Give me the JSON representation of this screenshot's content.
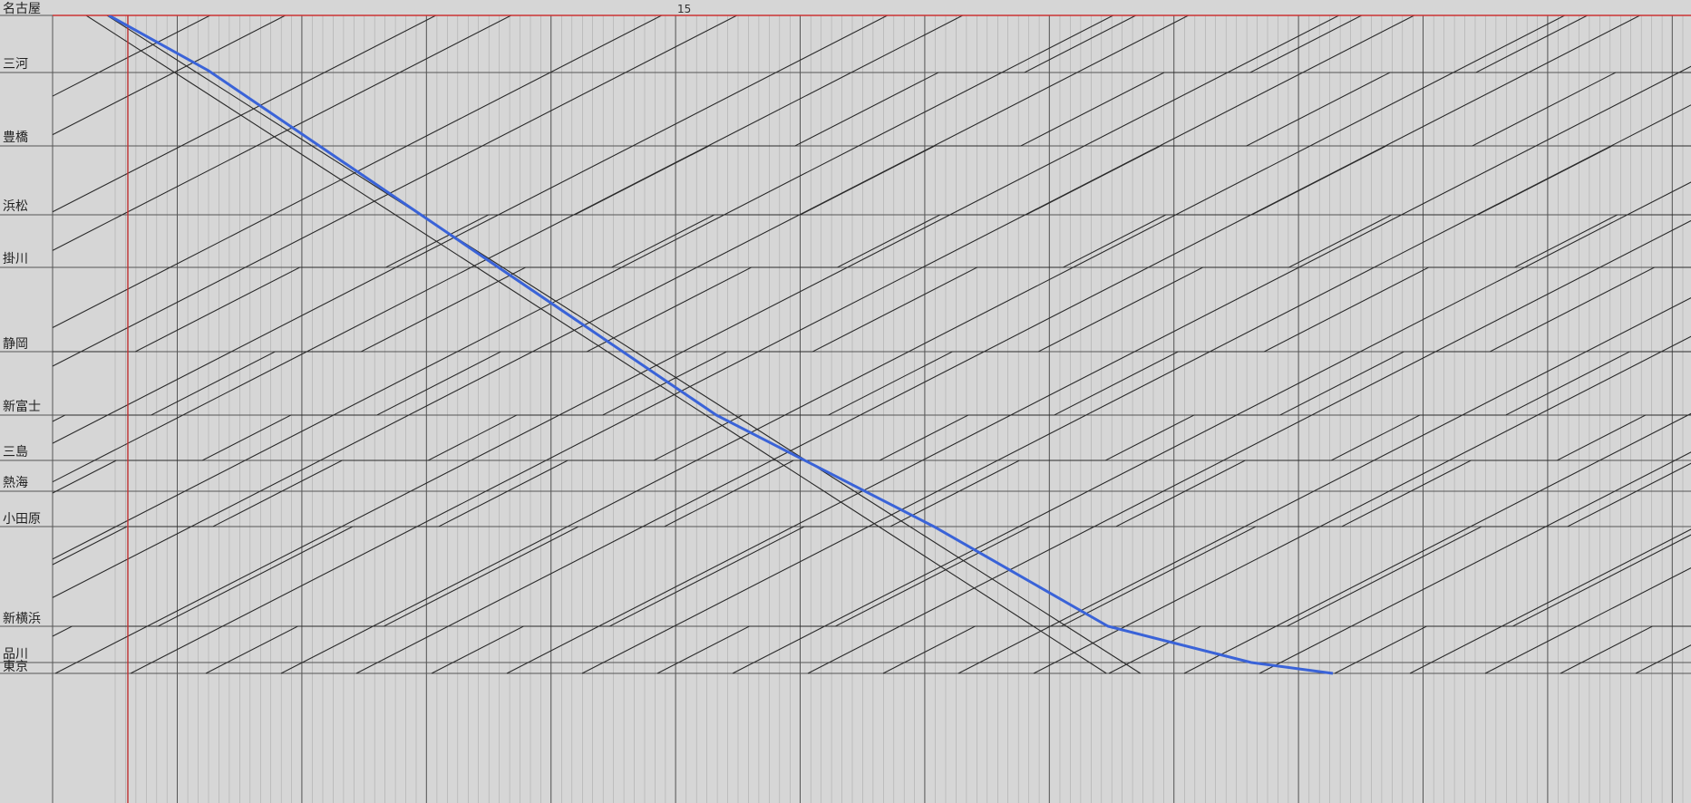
{
  "diagram": {
    "stations": [
      {
        "name": "名古屋"
      },
      {
        "name": "三河"
      },
      {
        "name": "豊橋"
      },
      {
        "name": "浜松"
      },
      {
        "name": "掛川"
      },
      {
        "name": "静岡"
      },
      {
        "name": "新富士"
      },
      {
        "name": "三島"
      },
      {
        "name": "熱海"
      },
      {
        "name": "小田原"
      },
      {
        "name": "新横浜"
      },
      {
        "name": "品川"
      },
      {
        "name": "東京"
      }
    ],
    "hour_labels": [
      {
        "label": "15"
      }
    ],
    "colors": {
      "background": "#d6d6d6",
      "station_line": "#555555",
      "grid_minor": "#8a8a8a",
      "grid_major": "#555555",
      "top_border": "#cc3333",
      "current_time_marker": "#c03030",
      "train_line": "#2a2a2a",
      "highlighted_train": "#3a63d8"
    }
  }
}
